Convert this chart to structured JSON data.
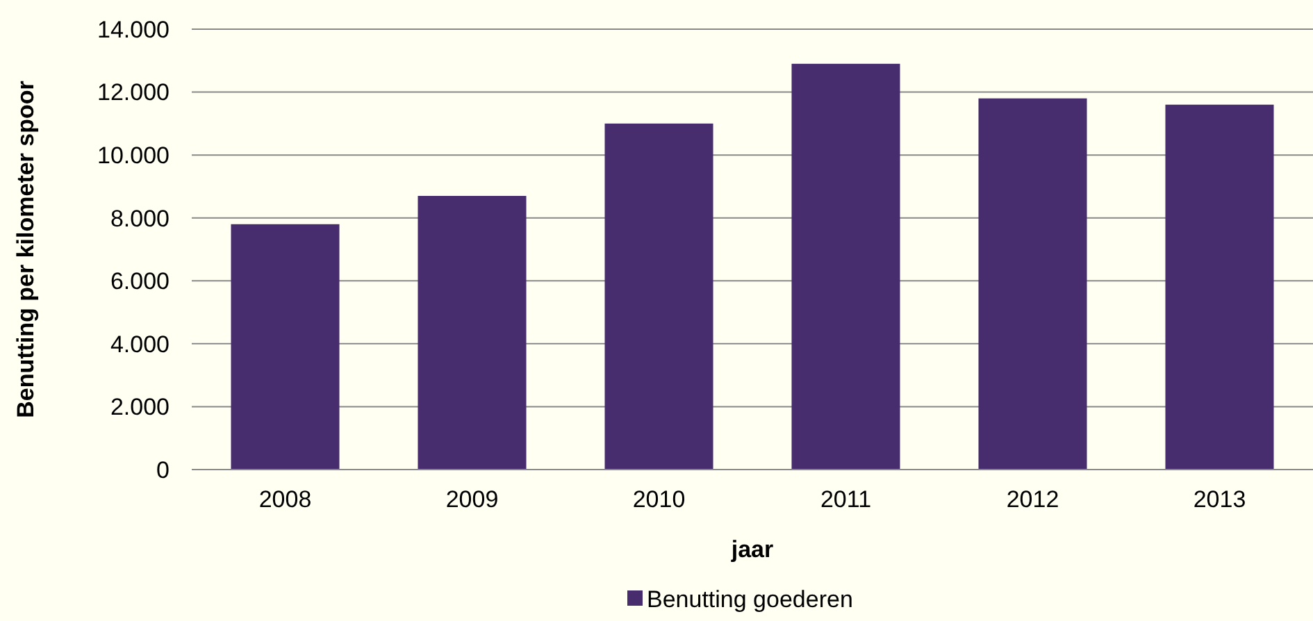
{
  "chart_data": {
    "type": "bar",
    "xlabel": "jaar",
    "ylabel": "Benutting per kilometer spoor",
    "categories": [
      "2008",
      "2009",
      "2010",
      "2011",
      "2012",
      "2013"
    ],
    "series": [
      {
        "name": "Benutting goederen",
        "color": "#472c6e",
        "values": [
          7800,
          8700,
          11000,
          12900,
          11800,
          11600
        ]
      }
    ],
    "ylim": [
      0,
      14000
    ],
    "yticks": [
      {
        "value": 0,
        "label": "0"
      },
      {
        "value": 2000,
        "label": "2.000"
      },
      {
        "value": 4000,
        "label": "4.000"
      },
      {
        "value": 6000,
        "label": "6.000"
      },
      {
        "value": 8000,
        "label": "8.000"
      },
      {
        "value": 10000,
        "label": "10.000"
      },
      {
        "value": 12000,
        "label": "12.000"
      },
      {
        "value": 14000,
        "label": "14.000"
      }
    ],
    "grid": "y",
    "legend": "bottom"
  }
}
